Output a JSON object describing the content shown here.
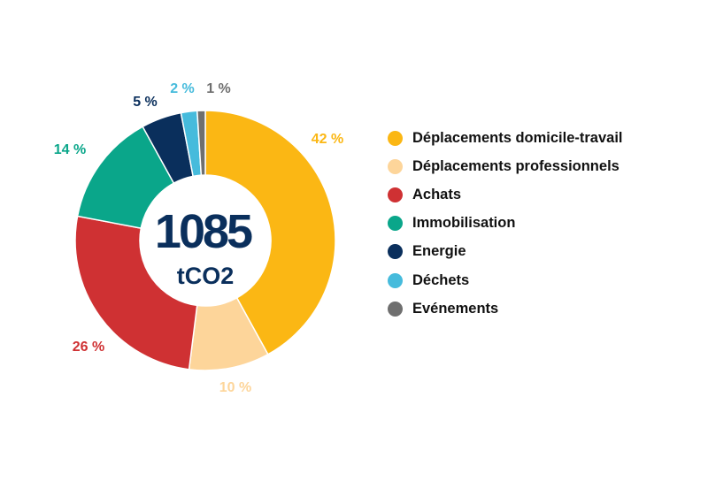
{
  "chart_data": {
    "type": "pie",
    "variant": "donut",
    "center": {
      "value": "1085",
      "unit": "tCO2",
      "color": "#0a2f5c"
    },
    "segments": [
      {
        "name": "Déplacements domicile-travail",
        "value": 42,
        "label": "42 %",
        "color": "#fbb714"
      },
      {
        "name": "Déplacements professionnels",
        "value": 10,
        "label": "10 %",
        "color": "#fdd59a"
      },
      {
        "name": "Achats",
        "value": 26,
        "label": "26 %",
        "color": "#cf3133"
      },
      {
        "name": "Immobilisation",
        "value": 14,
        "label": "14 %",
        "color": "#0aa68a"
      },
      {
        "name": "Energie",
        "value": 5,
        "label": "5 %",
        "color": "#0a2f5c"
      },
      {
        "name": "Déchets",
        "value": 2,
        "label": "2 %",
        "color": "#46bbdc"
      },
      {
        "name": "Evénements",
        "value": 1,
        "label": "1 %",
        "color": "#6f6f6f"
      }
    ],
    "legend_placement": "right"
  }
}
